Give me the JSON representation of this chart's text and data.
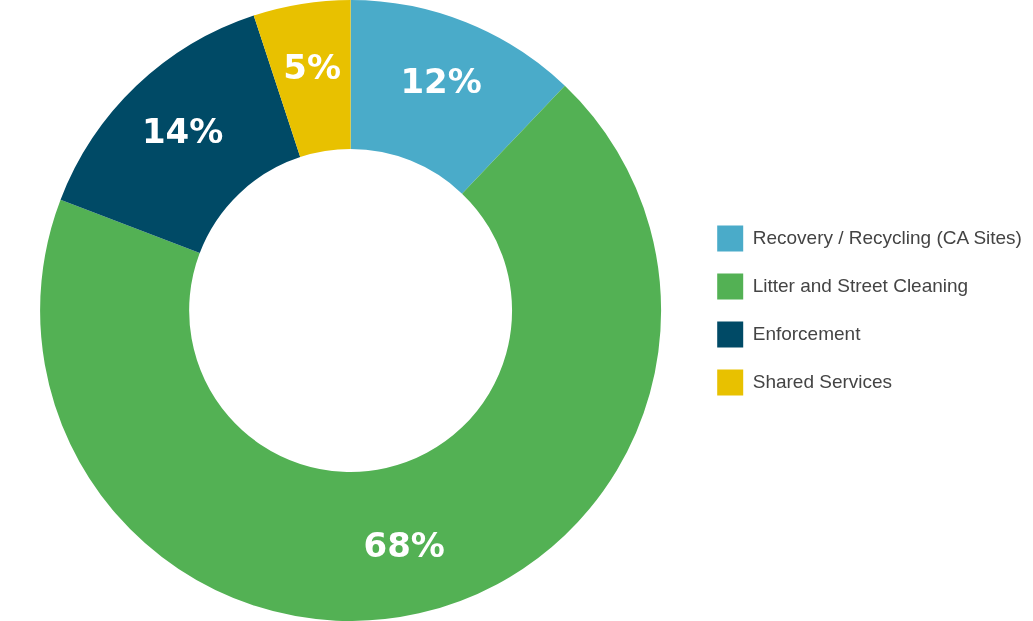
{
  "chart_data": {
    "type": "donut",
    "categories": [
      "Recovery / Recycling (CA Sites)",
      "Litter and Street Cleaning",
      "Enforcement",
      "Shared Services"
    ],
    "values": [
      12,
      68,
      14,
      5
    ],
    "colors": [
      "#4aabc9",
      "#53b154",
      "#004a66",
      "#e8c100"
    ],
    "value_labels": [
      "12%",
      "68%",
      "14%",
      "5%"
    ],
    "legend": "right"
  }
}
